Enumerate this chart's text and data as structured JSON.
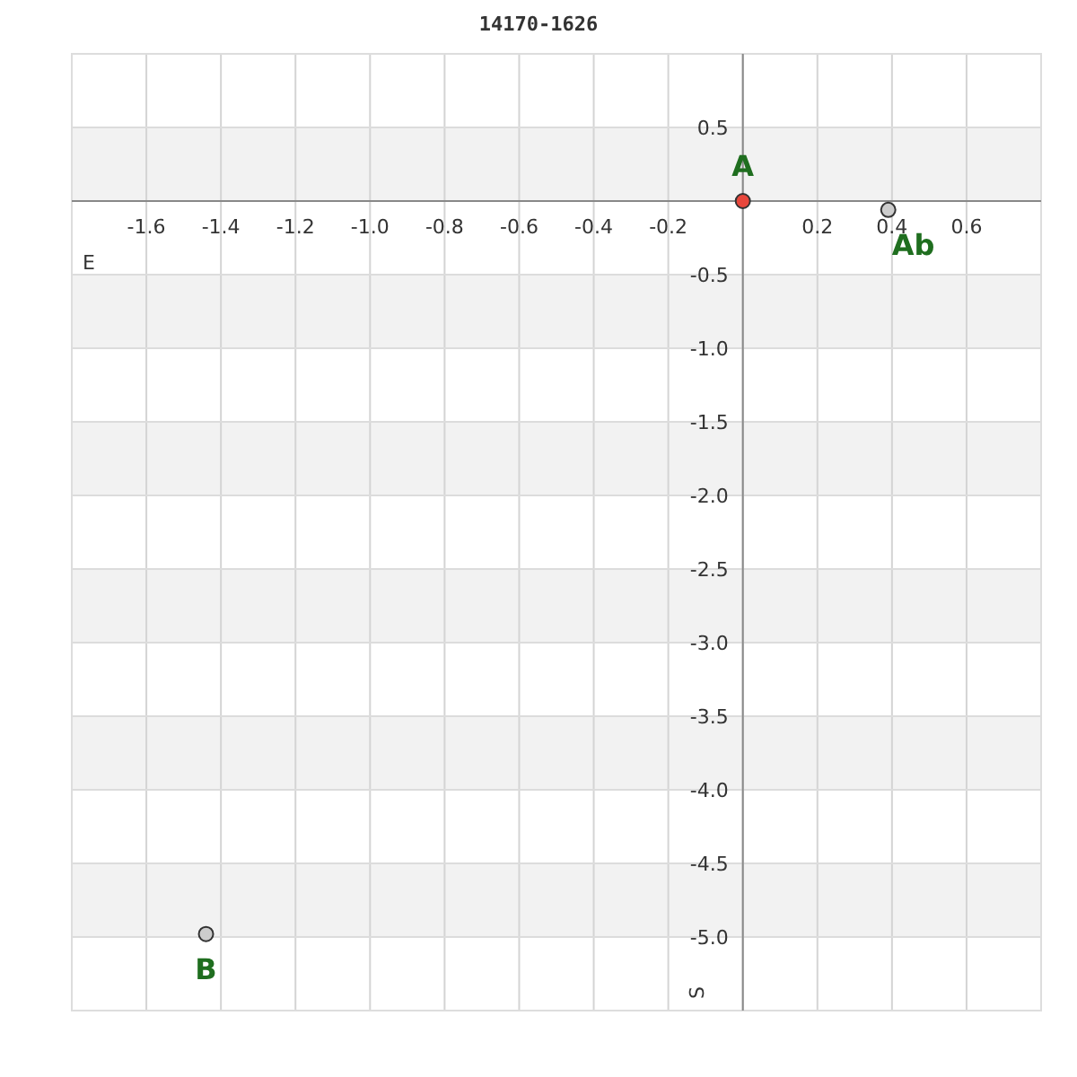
{
  "chart_data": {
    "type": "scatter",
    "title": "14170-1626",
    "xlabel": "E",
    "ylabel": "S",
    "xlim": [
      -1.8,
      0.8
    ],
    "ylim": [
      -5.5,
      1.0
    ],
    "xticks": [
      -1.6,
      -1.4,
      -1.2,
      {
        "value": -1,
        "label": "-1.0"
      },
      -0.8,
      -0.6,
      -0.4,
      -0.2,
      {
        "value": 0,
        "label": null
      },
      0.2,
      0.4,
      0.6
    ],
    "yticks": [
      0.5,
      {
        "value": 0,
        "label": null
      },
      -0.5,
      {
        "value": -1,
        "label": "-1.0"
      },
      -1.5,
      {
        "value": -2,
        "label": "-2.0"
      },
      -2.5,
      {
        "value": -3,
        "label": "-3.0"
      },
      -3.5,
      {
        "value": -4,
        "label": "-4.0"
      },
      -4.5,
      {
        "value": -5,
        "label": "-5.0"
      }
    ],
    "grid": true,
    "marker": "circle",
    "series": [
      {
        "name": "A",
        "color": "#e8473c",
        "x": [
          0
        ],
        "values": [
          0
        ]
      },
      {
        "name": "Ab",
        "color": "#cccccc",
        "x": [
          0.39
        ],
        "values": [
          -0.06
        ]
      },
      {
        "name": "B",
        "color": "#cccccc",
        "x": [
          -1.44
        ],
        "values": [
          -4.98
        ]
      }
    ]
  }
}
